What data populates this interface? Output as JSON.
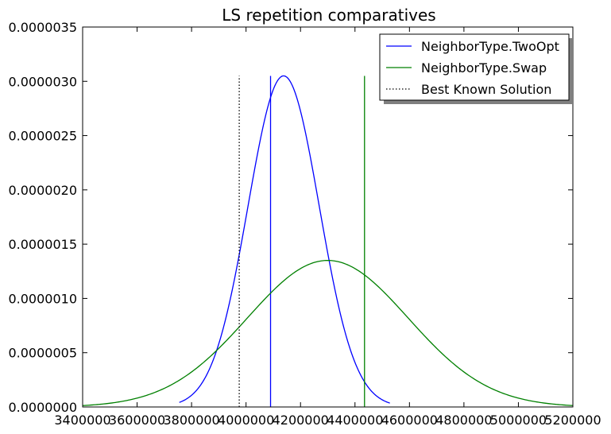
{
  "chart_data": {
    "type": "line",
    "title": "LS repetition comparatives",
    "xlabel": "",
    "ylabel": "",
    "xlim": [
      3400000,
      5200000
    ],
    "ylim": [
      0,
      3.5e-06
    ],
    "x_ticks": [
      3400000,
      3600000,
      3800000,
      4000000,
      4200000,
      4400000,
      4600000,
      4800000,
      5000000,
      5200000
    ],
    "x_tick_labels": [
      "3400000",
      "3600000",
      "3800000",
      "4000000",
      "4200000",
      "4400000",
      "4600000",
      "4800000",
      "5000000",
      "5200000"
    ],
    "y_ticks": [
      0,
      5e-07,
      1e-06,
      1.5e-06,
      2e-06,
      2.5e-06,
      3e-06,
      3.5e-06
    ],
    "y_tick_labels": [
      "0.0000000",
      "0.0000005",
      "0.0000010",
      "0.0000015",
      "0.0000020",
      "0.0000025",
      "0.0000030",
      "0.0000035"
    ],
    "grid": false,
    "legend_position": "top-right",
    "series": [
      {
        "name": "NeighborType.TwoOpt",
        "color": "#0000ff",
        "style": "solid",
        "curve": "normal-pdf",
        "mean": 4138000,
        "peak": 3.05e-06,
        "x_range": [
          3755000,
          4528000
        ],
        "marker_x": 4090000,
        "marker_height": 3.05e-06
      },
      {
        "name": "NeighborType.Swap",
        "color": "#008000",
        "style": "solid",
        "curve": "normal-pdf",
        "mean": 4300000,
        "peak": 1.35e-06,
        "x_range": [
          3400000,
          5200000
        ],
        "marker_x": 4435000,
        "marker_height": 3.05e-06
      },
      {
        "name": "Best Known Solution",
        "color": "#000000",
        "style": "dotted",
        "curve": "vline",
        "x": 3975000,
        "height": 3.05e-06
      }
    ]
  }
}
